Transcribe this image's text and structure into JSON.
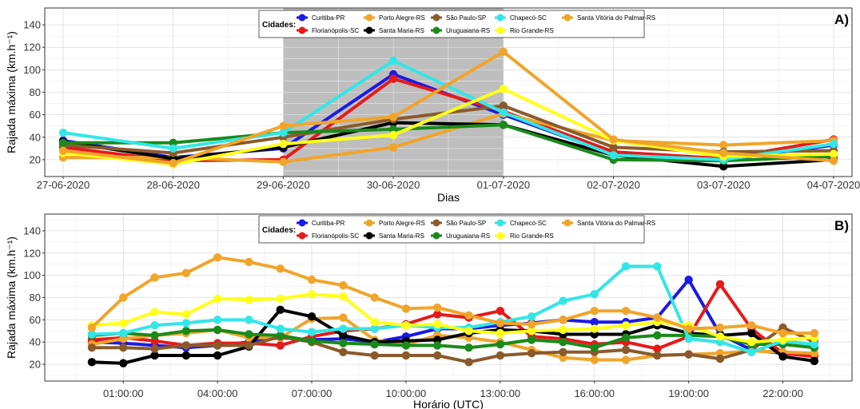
{
  "chart_data": [
    {
      "type": "line",
      "panel_label": "A)",
      "ylabel": "Rajada máxima (km.h⁻¹)",
      "xlabel": "Dias",
      "ylim": [
        5,
        155
      ],
      "yticks": [
        20,
        40,
        60,
        80,
        100,
        120,
        140
      ],
      "categories": [
        "27-06-2020",
        "28-06-2020",
        "29-06-2020",
        "30-06-2020",
        "01-07-2020",
        "02-07-2020",
        "03-07-2020",
        "04-07-2020"
      ],
      "highlight_range": [
        "29-06-2020",
        "01-07-2020"
      ],
      "highlight_color": "#bebebe",
      "grid": true,
      "legend_title": "Cidades:",
      "legend_position": "top-center",
      "series": [
        {
          "name": "Curitiba-PR",
          "color": "#1a1ae6",
          "values": [
            37,
            22,
            30,
            96,
            60,
            25,
            20,
            33
          ]
        },
        {
          "name": "Florianópolis-SC",
          "color": "#e61a1a",
          "values": [
            31,
            19,
            20,
            92,
            63,
            27,
            21,
            38
          ]
        },
        {
          "name": "Porto Alegre-RS",
          "color": "#f0a52a",
          "values": [
            22,
            22,
            18,
            31,
            61,
            37,
            33,
            37
          ]
        },
        {
          "name": "Santa Maria-RS",
          "color": "#000000",
          "values": [
            36,
            21,
            31,
            53,
            51,
            24,
            14,
            20
          ]
        },
        {
          "name": "São Paulo-SP",
          "color": "#8b5a2b",
          "values": [
            33,
            26,
            40,
            56,
            68,
            31,
            27,
            28
          ]
        },
        {
          "name": "Uruguaiana-RS",
          "color": "#1a8a1a",
          "values": [
            35,
            35,
            44,
            47,
            51,
            20,
            19,
            23
          ]
        },
        {
          "name": "Chapecó-SC",
          "color": "#33e6e6",
          "values": [
            44,
            30,
            44,
            108,
            62,
            24,
            20,
            34
          ]
        },
        {
          "name": "Rio Grande-RS",
          "color": "#ffff1a",
          "values": [
            26,
            16,
            34,
            42,
            83,
            37,
            23,
            25
          ]
        },
        {
          "name": "Santa Vitória do Palmar-RS",
          "color": "#f0a52a",
          "values": [
            28,
            17,
            50,
            58,
            116,
            38,
            26,
            19
          ]
        }
      ]
    },
    {
      "type": "line",
      "panel_label": "B)",
      "ylabel": "Rajada máxima (km.h⁻¹)",
      "xlabel": "Horário (UTC)",
      "ylim": [
        5,
        155
      ],
      "yticks": [
        20,
        40,
        60,
        80,
        100,
        120,
        140
      ],
      "x": [
        0,
        1,
        2,
        3,
        4,
        5,
        6,
        7,
        8,
        9,
        10,
        11,
        12,
        13,
        14,
        15,
        16,
        17,
        18,
        19,
        20,
        21,
        22,
        23
      ],
      "xticks": [
        1,
        4,
        7,
        10,
        13,
        16,
        19,
        22
      ],
      "xtick_labels": [
        "01:00:00",
        "04:00:00",
        "07:00:00",
        "10:00:00",
        "13:00:00",
        "16:00:00",
        "19:00:00",
        "22:00:00"
      ],
      "grid": true,
      "legend_title": "Cidades:",
      "legend_position": "top-center",
      "series": [
        {
          "name": "Curitiba-PR",
          "color": "#1a1ae6",
          "values": [
            40,
            39,
            37,
            35,
            37,
            40,
            44,
            42,
            43,
            40,
            45,
            52,
            52,
            55,
            57,
            60,
            58,
            58,
            62,
            96,
            47,
            33,
            30,
            28
          ]
        },
        {
          "name": "Florianópolis-SC",
          "color": "#e61a1a",
          "values": [
            42,
            44,
            41,
            37,
            39,
            39,
            37,
            45,
            50,
            52,
            56,
            65,
            62,
            68,
            45,
            43,
            38,
            40,
            34,
            45,
            92,
            52,
            30,
            27
          ]
        },
        {
          "name": "Porto Alegre-RS",
          "color": "#f0a52a",
          "values": [
            38,
            43,
            46,
            48,
            51,
            44,
            44,
            61,
            62,
            42,
            38,
            46,
            44,
            40,
            33,
            26,
            24,
            24,
            28,
            29,
            30,
            32,
            31,
            30
          ]
        },
        {
          "name": "Santa Maria-RS",
          "color": "#000000",
          "values": [
            22,
            21,
            28,
            28,
            28,
            36,
            69,
            63,
            46,
            40,
            41,
            42,
            48,
            51,
            50,
            47,
            47,
            47,
            55,
            48,
            46,
            48,
            27,
            23
          ]
        },
        {
          "name": "São Paulo-SP",
          "color": "#8b5a2b",
          "values": [
            35,
            35,
            34,
            37,
            37,
            37,
            45,
            40,
            31,
            28,
            28,
            28,
            22,
            28,
            30,
            31,
            31,
            33,
            28,
            29,
            25,
            33,
            53,
            40
          ]
        },
        {
          "name": "Uruguaiana-RS",
          "color": "#1a8a1a",
          "values": [
            46,
            48,
            46,
            50,
            51,
            47,
            46,
            41,
            39,
            38,
            37,
            37,
            35,
            38,
            42,
            40,
            35,
            44,
            46,
            46,
            45,
            38,
            38,
            35
          ]
        },
        {
          "name": "Chapecó-SC",
          "color": "#33e6e6",
          "values": [
            47,
            48,
            55,
            57,
            60,
            60,
            52,
            49,
            52,
            52,
            55,
            53,
            53,
            58,
            63,
            77,
            83,
            108,
            108,
            43,
            40,
            31,
            41,
            38
          ]
        },
        {
          "name": "Rio Grande-RS",
          "color": "#ffff1a",
          "values": [
            55,
            57,
            67,
            65,
            79,
            78,
            79,
            83,
            81,
            58,
            55,
            56,
            50,
            48,
            50,
            51,
            52,
            55,
            58,
            55,
            45,
            40,
            42,
            44
          ]
        },
        {
          "name": "Santa Vitória do Palmar-RS",
          "color": "#f0a52a",
          "values": [
            53,
            80,
            98,
            102,
            116,
            112,
            106,
            96,
            91,
            80,
            70,
            71,
            64,
            57,
            56,
            60,
            68,
            68,
            62,
            52,
            53,
            55,
            48,
            48
          ]
        }
      ]
    }
  ]
}
